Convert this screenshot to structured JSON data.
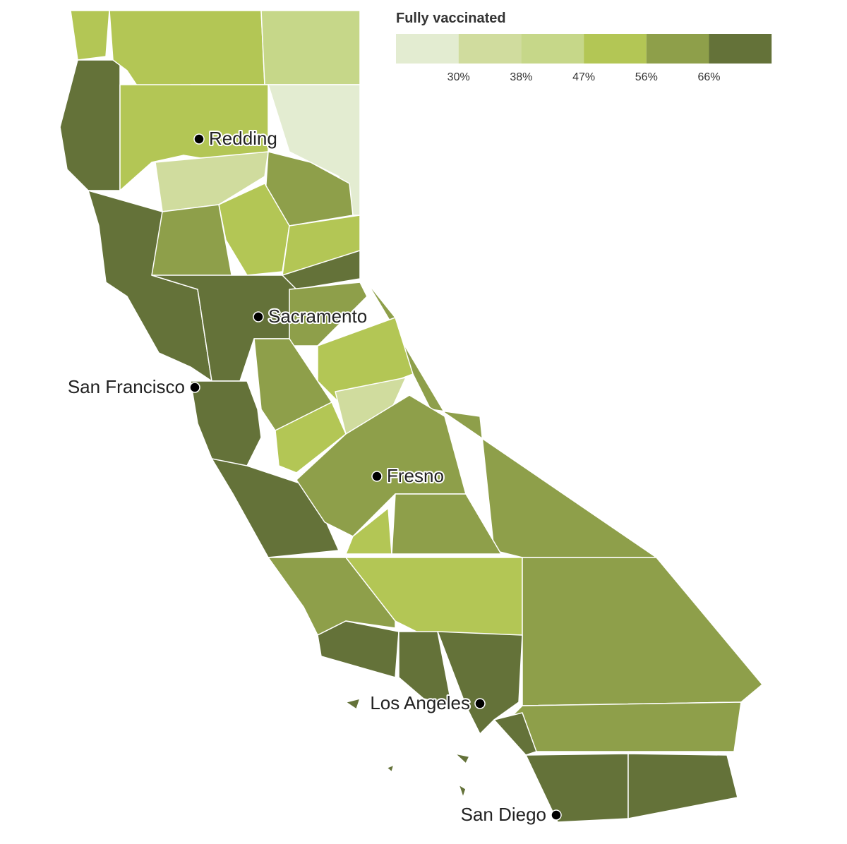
{
  "legend": {
    "title": "Fully vaccinated",
    "colors": [
      "#e3ecd1",
      "#d0dc9e",
      "#c6d789",
      "#b3c655",
      "#8e9f4a",
      "#647239"
    ],
    "ticks": [
      {
        "value": 30,
        "label": "30%"
      },
      {
        "value": 38,
        "label": "38%"
      },
      {
        "value": 47,
        "label": "47%"
      },
      {
        "value": 56,
        "label": "56%"
      },
      {
        "value": 66,
        "label": "66%"
      }
    ]
  },
  "cities": [
    {
      "name": "Redding"
    },
    {
      "name": "Sacramento"
    },
    {
      "name": "San Francisco"
    },
    {
      "name": "Fresno"
    },
    {
      "name": "Los Angeles"
    },
    {
      "name": "San Diego"
    }
  ]
}
